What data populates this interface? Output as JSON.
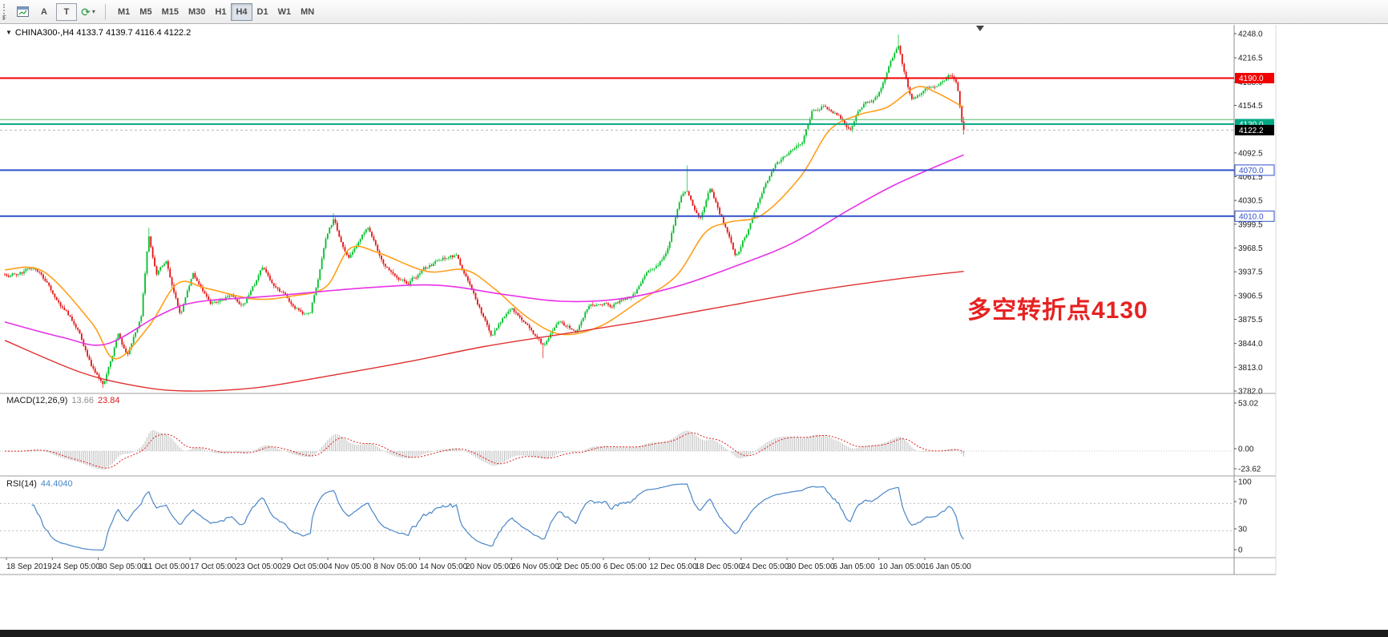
{
  "toolbar": {
    "handle_label": "F",
    "tools": [
      {
        "name": "charts-icon"
      },
      {
        "name": "text-tool",
        "label": "A"
      },
      {
        "name": "text-label-tool",
        "label": "T"
      },
      {
        "name": "indicators-cycle"
      }
    ],
    "timeframes": [
      "M1",
      "M5",
      "M15",
      "M30",
      "H1",
      "H4",
      "D1",
      "W1",
      "MN"
    ],
    "active_timeframe": "H4"
  },
  "icons": {
    "symbol_dropdown": "▼",
    "caret_down": "▾",
    "indicators_cycle": "⟳"
  },
  "chart_data": {
    "type": "candlestick",
    "symbol": "CHINA300-",
    "timeframe": "H4",
    "header": "CHINA300-,H4 4133.7 4139.7 4116.4 4122.2",
    "ohlc_current": {
      "open": 4133.7,
      "high": 4139.7,
      "low": 4116.4,
      "close": 4122.2
    },
    "y_range": [
      3782.0,
      4248.0
    ],
    "price_ticks": [
      "4248.0",
      "4216.5",
      "4185.0",
      "4154.5",
      "4092.5",
      "4061.5",
      "4030.5",
      "3999.5",
      "3968.5",
      "3937.5",
      "3906.5",
      "3875.5",
      "3844.0",
      "3813.0",
      "3782.0"
    ],
    "x_labels": [
      "18 Sep 2019",
      "24 Sep 05:00",
      "30 Sep 05:00",
      "11 Oct 05:00",
      "17 Oct 05:00",
      "23 Oct 05:00",
      "29 Oct 05:00",
      "4 Nov 05:00",
      "8 Nov 05:00",
      "14 Nov 05:00",
      "20 Nov 05:00",
      "26 Nov 05:00",
      "2 Dec 05:00",
      "6 Dec 05:00",
      "12 Dec 05:00",
      "18 Dec 05:00",
      "24 Dec 05:00",
      "30 Dec 05:00",
      "6 Jan 05:00",
      "10 Jan 05:00",
      "16 Jan 05:00"
    ],
    "horizontal_levels": [
      {
        "price": 4190.0,
        "label": "4190.0",
        "color": "#f20000",
        "width": 2,
        "label_style": "solid"
      },
      {
        "price": 4136.0,
        "label": null,
        "color": "#55b868",
        "width": 1,
        "label_style": "none"
      },
      {
        "price": 4130.0,
        "label": "4130.0",
        "color": "#00a884",
        "width": 2,
        "label_style": "solid"
      },
      {
        "price": 4070.0,
        "label": "4070.0",
        "color": "#3050c8",
        "width": 2,
        "label_style": "hollow"
      },
      {
        "price": 4010.0,
        "label": "4010.0",
        "color": "#3050c8",
        "width": 2,
        "label_style": "hollow"
      }
    ],
    "bid": {
      "price": 4122.2,
      "label": "4122.2"
    },
    "annotation": {
      "text": "多空转折点4130",
      "color": "#e62222"
    },
    "colors": {
      "up": "#00bf2a",
      "down": "#e51212",
      "ma_fast": "#ff9f1a",
      "ma_mid": "#e832e8",
      "ma_slow": "#e03030",
      "macd_hist": "#bdbdbd",
      "macd_signal": "#e02020",
      "rsi_line": "#4a86c8"
    },
    "candles": {
      "count": 500,
      "seed": 1701,
      "anchors": [
        [
          0,
          3932
        ],
        [
          0.03,
          3944
        ],
        [
          0.055,
          3900
        ],
        [
          0.075,
          3865
        ],
        [
          0.095,
          3806
        ],
        [
          0.103,
          3792
        ],
        [
          0.118,
          3856
        ],
        [
          0.128,
          3826
        ],
        [
          0.142,
          3872
        ],
        [
          0.15,
          3982
        ],
        [
          0.158,
          3930
        ],
        [
          0.168,
          3950
        ],
        [
          0.183,
          3884
        ],
        [
          0.196,
          3940
        ],
        [
          0.205,
          3918
        ],
        [
          0.215,
          3896
        ],
        [
          0.235,
          3912
        ],
        [
          0.25,
          3896
        ],
        [
          0.268,
          3936
        ],
        [
          0.285,
          3910
        ],
        [
          0.303,
          3892
        ],
        [
          0.318,
          3882
        ],
        [
          0.335,
          3984
        ],
        [
          0.343,
          4006
        ],
        [
          0.358,
          3952
        ],
        [
          0.378,
          3996
        ],
        [
          0.395,
          3950
        ],
        [
          0.42,
          3920
        ],
        [
          0.435,
          3936
        ],
        [
          0.458,
          3950
        ],
        [
          0.472,
          3954
        ],
        [
          0.495,
          3892
        ],
        [
          0.508,
          3848
        ],
        [
          0.528,
          3888
        ],
        [
          0.545,
          3858
        ],
        [
          0.562,
          3832
        ],
        [
          0.578,
          3866
        ],
        [
          0.595,
          3856
        ],
        [
          0.61,
          3900
        ],
        [
          0.632,
          3898
        ],
        [
          0.655,
          3912
        ],
        [
          0.672,
          3938
        ],
        [
          0.69,
          3964
        ],
        [
          0.705,
          4036
        ],
        [
          0.712,
          4040
        ],
        [
          0.725,
          4000
        ],
        [
          0.735,
          4038
        ],
        [
          0.752,
          3990
        ],
        [
          0.762,
          3958
        ],
        [
          0.775,
          3994
        ],
        [
          0.79,
          4048
        ],
        [
          0.805,
          4082
        ],
        [
          0.818,
          4096
        ],
        [
          0.832,
          4104
        ],
        [
          0.842,
          4148
        ],
        [
          0.855,
          4160
        ],
        [
          0.87,
          4150
        ],
        [
          0.882,
          4128
        ],
        [
          0.895,
          4154
        ],
        [
          0.91,
          4164
        ],
        [
          0.925,
          4212
        ],
        [
          0.932,
          4230
        ],
        [
          0.945,
          4160
        ],
        [
          0.958,
          4174
        ],
        [
          0.972,
          4180
        ],
        [
          0.985,
          4194
        ],
        [
          0.993,
          4186
        ],
        [
          1,
          4122.2
        ]
      ],
      "spikes_high": [
        [
          0.15,
          3995
        ],
        [
          0.343,
          4014
        ],
        [
          0.712,
          4076
        ],
        [
          0.932,
          4247
        ]
      ],
      "spikes_low": [
        [
          0.103,
          3786
        ],
        [
          0.562,
          3825
        ]
      ]
    },
    "overlays": [
      {
        "name": "ma-fast",
        "color_key": "ma_fast",
        "anchors": [
          [
            0,
            3940
          ],
          [
            0.04,
            3938
          ],
          [
            0.09,
            3872
          ],
          [
            0.115,
            3824
          ],
          [
            0.15,
            3866
          ],
          [
            0.18,
            3922
          ],
          [
            0.21,
            3916
          ],
          [
            0.26,
            3902
          ],
          [
            0.3,
            3906
          ],
          [
            0.335,
            3918
          ],
          [
            0.36,
            3968
          ],
          [
            0.39,
            3962
          ],
          [
            0.44,
            3938
          ],
          [
            0.48,
            3940
          ],
          [
            0.51,
            3916
          ],
          [
            0.545,
            3878
          ],
          [
            0.58,
            3856
          ],
          [
            0.62,
            3866
          ],
          [
            0.66,
            3898
          ],
          [
            0.7,
            3932
          ],
          [
            0.73,
            3988
          ],
          [
            0.755,
            4002
          ],
          [
            0.79,
            4012
          ],
          [
            0.83,
            4062
          ],
          [
            0.86,
            4122
          ],
          [
            0.89,
            4142
          ],
          [
            0.92,
            4152
          ],
          [
            0.95,
            4178
          ],
          [
            0.97,
            4172
          ],
          [
            1,
            4152
          ]
        ]
      },
      {
        "name": "ma-mid",
        "color_key": "ma_mid",
        "anchors": [
          [
            0,
            3872
          ],
          [
            0.06,
            3852
          ],
          [
            0.105,
            3843
          ],
          [
            0.16,
            3880
          ],
          [
            0.2,
            3898
          ],
          [
            0.28,
            3906
          ],
          [
            0.37,
            3916
          ],
          [
            0.45,
            3920
          ],
          [
            0.52,
            3908
          ],
          [
            0.58,
            3899
          ],
          [
            0.64,
            3902
          ],
          [
            0.7,
            3918
          ],
          [
            0.76,
            3944
          ],
          [
            0.82,
            3974
          ],
          [
            0.88,
            4018
          ],
          [
            0.93,
            4052
          ],
          [
            1,
            4090
          ]
        ]
      },
      {
        "name": "ma-slow",
        "color_key": "ma_slow",
        "anchors": [
          [
            0,
            3848
          ],
          [
            0.08,
            3806
          ],
          [
            0.14,
            3788
          ],
          [
            0.19,
            3782
          ],
          [
            0.26,
            3786
          ],
          [
            0.33,
            3800
          ],
          [
            0.42,
            3820
          ],
          [
            0.5,
            3840
          ],
          [
            0.58,
            3856
          ],
          [
            0.66,
            3872
          ],
          [
            0.74,
            3890
          ],
          [
            0.84,
            3912
          ],
          [
            0.93,
            3928
          ],
          [
            1,
            3938
          ]
        ]
      }
    ],
    "indicators": {
      "macd": {
        "name": "MACD(12,26,9)",
        "main_value": "13.66",
        "signal_value": "23.84",
        "scale_labels": [
          "53.02",
          "0.00",
          "-23.62"
        ]
      },
      "rsi": {
        "name": "RSI(14)",
        "value": "44.4040",
        "scale_labels": [
          "100",
          "70",
          "30",
          "0"
        ],
        "levels": [
          70,
          30
        ]
      }
    }
  }
}
